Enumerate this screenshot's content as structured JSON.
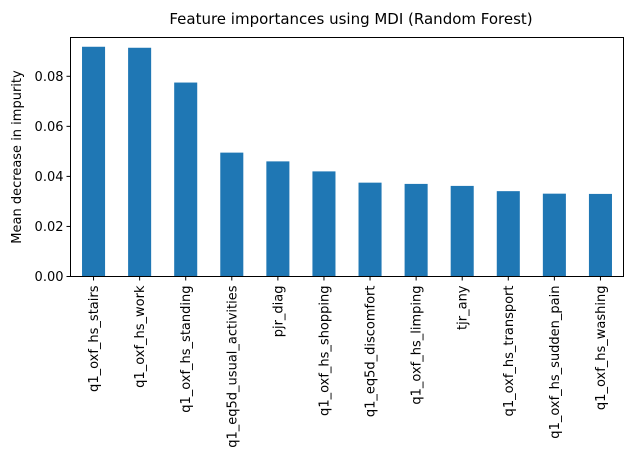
{
  "chart_data": {
    "type": "bar",
    "title": "Feature importances using MDI (Random Forest)",
    "xlabel": "",
    "ylabel": "Mean decrease in impurity",
    "ylim": [
      0,
      0.0955
    ],
    "yticks": [
      "0.00",
      "0.02",
      "0.04",
      "0.06",
      "0.08"
    ],
    "ytick_values": [
      0,
      0.02,
      0.04,
      0.06,
      0.08
    ],
    "grid": false,
    "bar_color": "#1f77b4",
    "categories": [
      "q1_oxf_hs_stairs",
      "q1_oxf_hs_work",
      "q1_oxf_hs_standing",
      "q1_eq5d_usual_activities",
      "pjr_diag",
      "q1_oxf_hs_shopping",
      "q1_eq5d_discomfort",
      "q1_oxf_hs_limping",
      "tjr_any",
      "q1_oxf_hs_transport",
      "q1_oxf_hs_sudden_pain",
      "q1_oxf_hs_washing"
    ],
    "values": [
      0.0918,
      0.0914,
      0.0775,
      0.0495,
      0.046,
      0.042,
      0.0375,
      0.037,
      0.0362,
      0.0341,
      0.0331,
      0.033
    ]
  }
}
